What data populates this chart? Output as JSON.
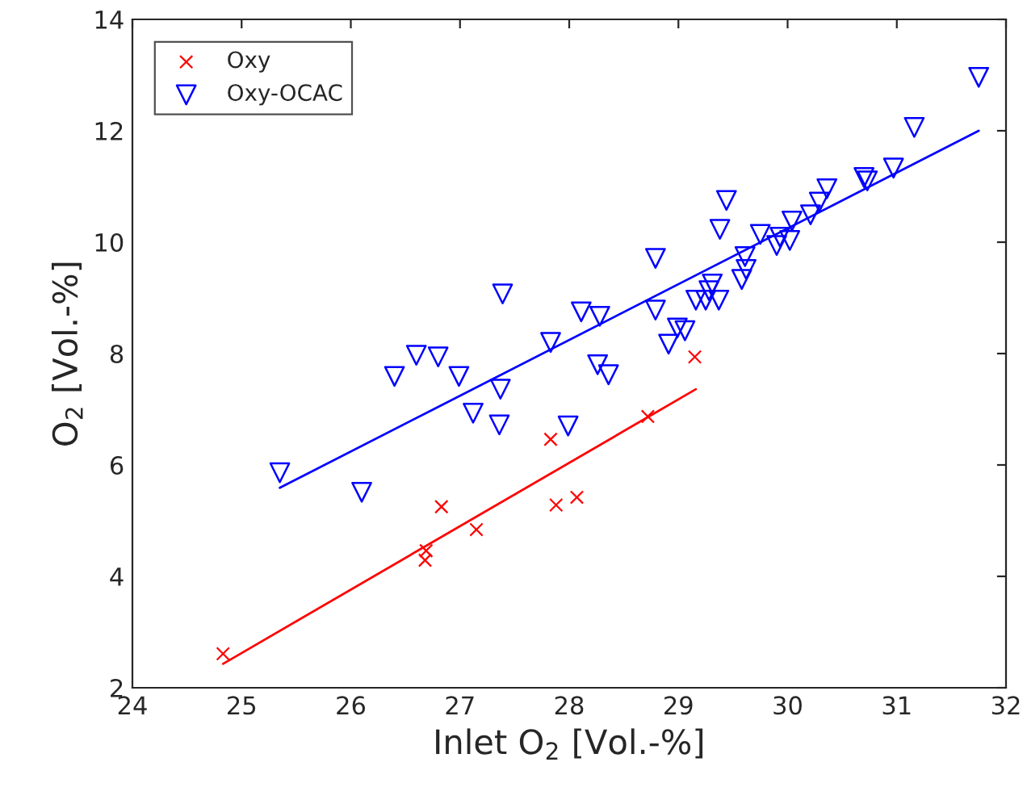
{
  "chart_data": {
    "type": "scatter",
    "xlabel": "Inlet O$_{2}$ [Vol.-%]",
    "ylabel": "O$_{2}$ [Vol.-%]",
    "xlim": [
      24,
      32
    ],
    "xticks": [
      24,
      25,
      26,
      27,
      28,
      29,
      30,
      31,
      32
    ],
    "ylim": [
      2,
      14
    ],
    "yticks": [
      2,
      4,
      6,
      8,
      10,
      12,
      14
    ],
    "grid": false,
    "legend": "top left",
    "series": [
      {
        "name": "Oxy",
        "color": "#ff0000",
        "marker": "cross",
        "x": [
          24.83,
          26.68,
          26.69,
          26.83,
          27.15,
          27.83,
          27.88,
          28.07,
          28.72,
          29.15
        ],
        "values": [
          2.61,
          4.29,
          4.46,
          5.25,
          4.84,
          6.46,
          5.28,
          5.42,
          6.87,
          7.94
        ]
      },
      {
        "name": "Oxy-OCAC",
        "color": "#0000ff",
        "marker": "triangle",
        "x": [
          25.35,
          26.1,
          26.4,
          26.6,
          26.8,
          26.99,
          27.12,
          27.36,
          27.37,
          27.39,
          27.83,
          27.99,
          28.11,
          28.28,
          28.26,
          28.36,
          28.79,
          28.79,
          28.91,
          28.99,
          29.06,
          29.16,
          29.25,
          29.31,
          29.37,
          29.28,
          29.38,
          29.44,
          29.58,
          29.62,
          29.61,
          29.75,
          29.9,
          30.02,
          29.93,
          30.04,
          30.21,
          30.29,
          30.36,
          30.7,
          30.73,
          30.97,
          31.16,
          31.75
        ],
        "values": [
          5.86,
          5.51,
          7.59,
          7.97,
          7.94,
          7.59,
          6.93,
          6.72,
          7.36,
          9.07,
          8.2,
          6.7,
          8.75,
          8.67,
          7.8,
          7.62,
          9.71,
          8.78,
          8.17,
          8.46,
          8.41,
          8.96,
          8.96,
          9.25,
          8.96,
          9.13,
          10.23,
          10.75,
          9.33,
          9.51,
          9.74,
          10.14,
          9.94,
          10.03,
          10.09,
          10.38,
          10.49,
          10.72,
          10.96,
          11.16,
          11.1,
          11.33,
          12.06,
          12.96
        ]
      },
      {
        "type": "line",
        "color": "#ff0000",
        "x": [
          24.83,
          29.16
        ],
        "values": [
          2.43,
          7.36
        ]
      },
      {
        "type": "line",
        "color": "#0000ff",
        "x": [
          25.35,
          31.75
        ],
        "values": [
          5.59,
          12.0
        ]
      }
    ]
  }
}
